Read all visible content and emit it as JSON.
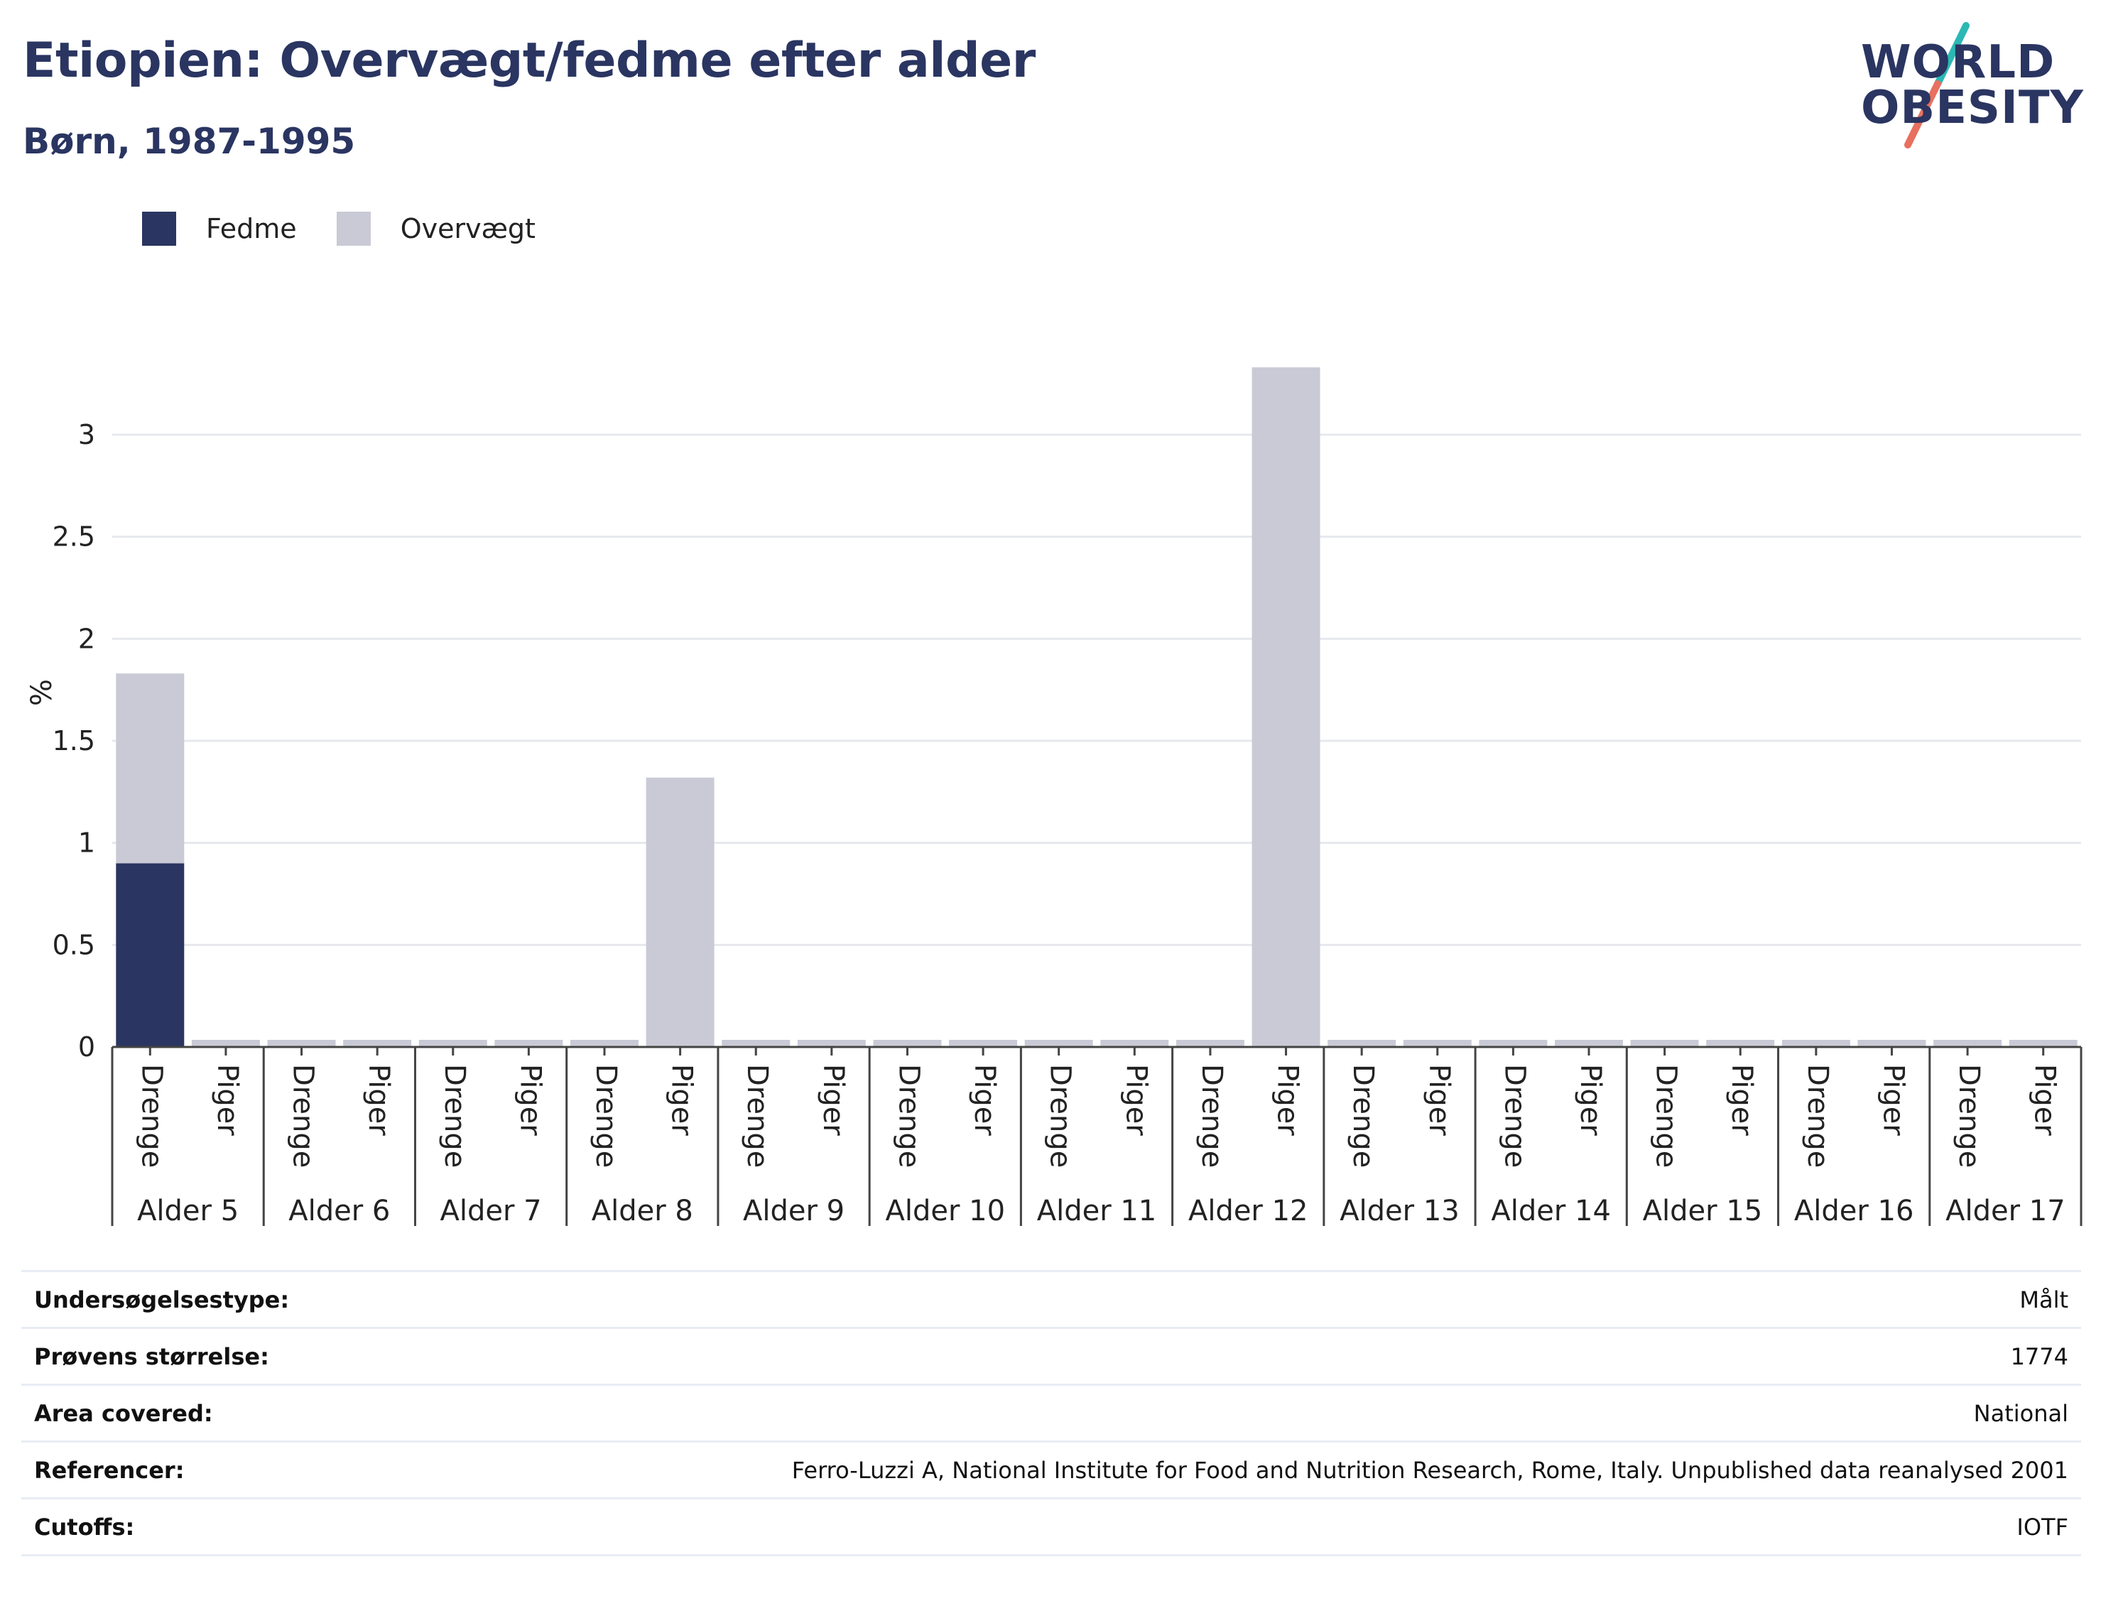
{
  "header": {
    "title": "Etiopien: Overvægt/fedme efter alder",
    "subtitle": "Børn, 1987-1995"
  },
  "logo": {
    "line1": "WORLD",
    "line2": "OBESITY",
    "colors": {
      "text": "#2a3561",
      "slash_top": "#2bb8b4",
      "slash_bottom": "#e8705f"
    }
  },
  "legend": [
    {
      "label": "Fedme",
      "color": "#2a3561"
    },
    {
      "label": "Overvægt",
      "color": "#c9cad6"
    }
  ],
  "chart_data": {
    "type": "bar",
    "stacked": true,
    "ylabel": "%",
    "xlabel": "",
    "ylim": [
      0,
      3.35
    ],
    "yticks": [
      0,
      0.5,
      1,
      1.5,
      2,
      2.5,
      3
    ],
    "ytick_labels": [
      "0",
      "0.5",
      "1",
      "1.5",
      "2",
      "2.5",
      "3"
    ],
    "grid": true,
    "legend_position": "top-left",
    "groups": [
      "Alder 5",
      "Alder 6",
      "Alder 7",
      "Alder 8",
      "Alder 9",
      "Alder 10",
      "Alder 11",
      "Alder 12",
      "Alder 13",
      "Alder 14",
      "Alder 15",
      "Alder 16",
      "Alder 17"
    ],
    "subcategories": [
      "Drenge",
      "Piger"
    ],
    "series": [
      {
        "name": "Fedme",
        "color": "#2a3561",
        "values": [
          0.9,
          0,
          0,
          0,
          0,
          0,
          0,
          0,
          0,
          0,
          0,
          0,
          0,
          0,
          0,
          0,
          0,
          0,
          0,
          0,
          0,
          0,
          0,
          0,
          0,
          0
        ]
      },
      {
        "name": "Overvægt",
        "color": "#c9cad6",
        "values": [
          0.93,
          0,
          0,
          0,
          0,
          0,
          0,
          1.32,
          0,
          0,
          0,
          0,
          0,
          0,
          0,
          3.33,
          0,
          0,
          0,
          0,
          0,
          0,
          0,
          0,
          0,
          0
        ]
      }
    ]
  },
  "info": [
    {
      "key": "Undersøgelsestype:",
      "value": "Målt"
    },
    {
      "key": "Prøvens størrelse:",
      "value": "1774"
    },
    {
      "key": "Area covered:",
      "value": "National"
    },
    {
      "key": "Referencer:",
      "value": "Ferro-Luzzi A, National Institute for Food and Nutrition Research, Rome, Italy. Unpublished data reanalysed 2001"
    },
    {
      "key": "Cutoffs:",
      "value": "IOTF"
    }
  ]
}
